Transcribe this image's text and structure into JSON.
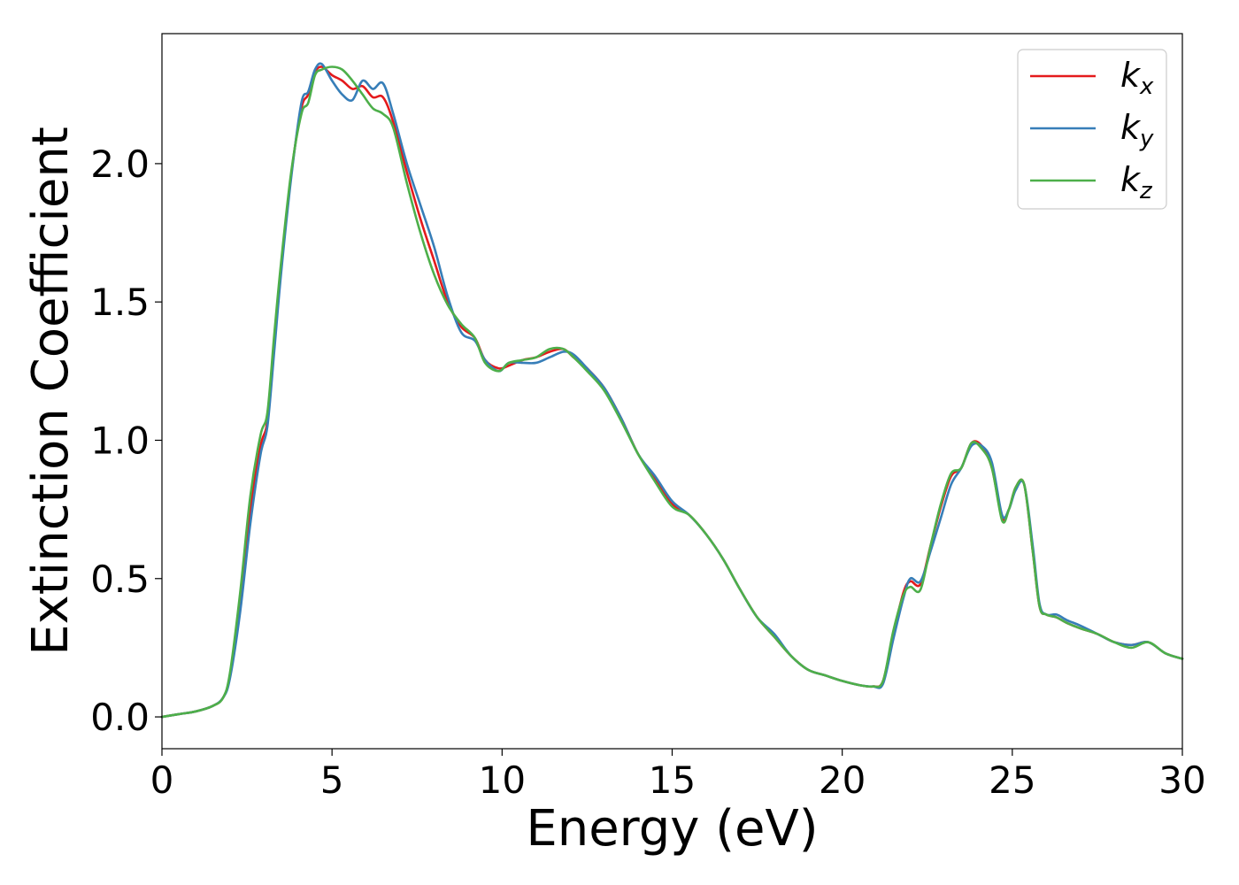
{
  "chart_data": {
    "type": "line",
    "title": "",
    "xlabel": "Energy (eV)",
    "ylabel": "Extinction Coefficient",
    "xlim": [
      0,
      30
    ],
    "ylim": [
      -0.115,
      2.47
    ],
    "xticks": [
      0,
      5,
      10,
      15,
      20,
      25,
      30
    ],
    "xtick_labels": [
      "0",
      "5",
      "10",
      "15",
      "20",
      "25",
      "30"
    ],
    "yticks": [
      0.0,
      0.5,
      1.0,
      1.5,
      2.0
    ],
    "ytick_labels": [
      "0.0",
      "0.5",
      "1.0",
      "1.5",
      "2.0"
    ],
    "grid": false,
    "legend_position": "top-right",
    "series": [
      {
        "name": "k",
        "subscript": "x",
        "color": "#e41a1c",
        "x": [
          0,
          0.5,
          1,
          1.5,
          1.8,
          2,
          2.3,
          2.6,
          2.9,
          3.1,
          3.3,
          3.5,
          3.8,
          4.1,
          4.3,
          4.5,
          4.7,
          5,
          5.3,
          5.6,
          5.9,
          6.2,
          6.5,
          6.8,
          7.2,
          7.6,
          8,
          8.4,
          8.8,
          9.2,
          9.5,
          9.9,
          10.2,
          10.6,
          11,
          11.4,
          11.8,
          12.1,
          12.5,
          13,
          13.5,
          14,
          14.5,
          15,
          15.5,
          16,
          16.5,
          17,
          17.5,
          18,
          18.5,
          19,
          19.5,
          20,
          20.5,
          20.9,
          21.2,
          21.5,
          21.8,
          22,
          22.3,
          22.6,
          22.9,
          23.2,
          23.5,
          23.8,
          24.1,
          24.4,
          24.7,
          24.9,
          25.1,
          25.35,
          25.6,
          25.8,
          26,
          26.3,
          26.6,
          27,
          27.5,
          28,
          28.5,
          29,
          29.5,
          30
        ],
        "y": [
          0,
          0.01,
          0.02,
          0.04,
          0.07,
          0.15,
          0.42,
          0.75,
          0.98,
          1.07,
          1.35,
          1.62,
          1.96,
          2.2,
          2.25,
          2.33,
          2.35,
          2.32,
          2.3,
          2.27,
          2.28,
          2.24,
          2.24,
          2.15,
          1.97,
          1.8,
          1.65,
          1.5,
          1.41,
          1.37,
          1.29,
          1.26,
          1.27,
          1.29,
          1.3,
          1.32,
          1.33,
          1.3,
          1.26,
          1.19,
          1.08,
          0.95,
          0.86,
          0.77,
          0.73,
          0.66,
          0.57,
          0.46,
          0.36,
          0.29,
          0.22,
          0.17,
          0.15,
          0.13,
          0.115,
          0.11,
          0.13,
          0.3,
          0.45,
          0.49,
          0.48,
          0.62,
          0.76,
          0.87,
          0.9,
          0.99,
          0.98,
          0.9,
          0.72,
          0.75,
          0.83,
          0.84,
          0.6,
          0.4,
          0.37,
          0.36,
          0.34,
          0.32,
          0.3,
          0.27,
          0.26,
          0.27,
          0.23,
          0.21
        ]
      },
      {
        "name": "k",
        "subscript": "y",
        "color": "#377eb8",
        "x": [
          0,
          0.5,
          1,
          1.5,
          1.8,
          2,
          2.3,
          2.6,
          2.9,
          3.1,
          3.3,
          3.5,
          3.8,
          4.1,
          4.3,
          4.5,
          4.7,
          5,
          5.3,
          5.6,
          5.9,
          6.2,
          6.5,
          6.8,
          7.2,
          7.6,
          8,
          8.4,
          8.8,
          9.2,
          9.5,
          9.9,
          10.2,
          10.6,
          11,
          11.4,
          11.8,
          12.1,
          12.5,
          13,
          13.5,
          14,
          14.5,
          15,
          15.5,
          16,
          16.5,
          17,
          17.5,
          18,
          18.5,
          19,
          19.5,
          20,
          20.5,
          20.9,
          21.2,
          21.5,
          21.8,
          22,
          22.3,
          22.6,
          22.9,
          23.2,
          23.5,
          23.8,
          24.1,
          24.4,
          24.7,
          24.9,
          25.1,
          25.35,
          25.6,
          25.8,
          26,
          26.3,
          26.6,
          27,
          27.5,
          28,
          28.5,
          29,
          29.5,
          30
        ],
        "y": [
          0,
          0.01,
          0.02,
          0.04,
          0.07,
          0.14,
          0.38,
          0.7,
          0.95,
          1.05,
          1.32,
          1.6,
          1.95,
          2.22,
          2.26,
          2.34,
          2.36,
          2.3,
          2.25,
          2.23,
          2.3,
          2.27,
          2.29,
          2.18,
          2.0,
          1.85,
          1.7,
          1.52,
          1.39,
          1.36,
          1.29,
          1.25,
          1.28,
          1.28,
          1.28,
          1.3,
          1.32,
          1.31,
          1.26,
          1.19,
          1.08,
          0.95,
          0.87,
          0.78,
          0.73,
          0.66,
          0.57,
          0.46,
          0.36,
          0.3,
          0.22,
          0.17,
          0.15,
          0.13,
          0.115,
          0.11,
          0.12,
          0.28,
          0.43,
          0.5,
          0.49,
          0.6,
          0.72,
          0.84,
          0.9,
          0.98,
          0.98,
          0.92,
          0.73,
          0.75,
          0.82,
          0.84,
          0.62,
          0.41,
          0.37,
          0.37,
          0.35,
          0.33,
          0.3,
          0.27,
          0.26,
          0.27,
          0.23,
          0.21
        ]
      },
      {
        "name": "k",
        "subscript": "z",
        "color": "#4daf4a",
        "x": [
          0,
          0.5,
          1,
          1.5,
          1.8,
          2,
          2.3,
          2.6,
          2.9,
          3.1,
          3.3,
          3.5,
          3.8,
          4.1,
          4.3,
          4.5,
          4.7,
          5,
          5.3,
          5.6,
          5.9,
          6.2,
          6.5,
          6.8,
          7.2,
          7.6,
          8,
          8.4,
          8.8,
          9.2,
          9.5,
          9.9,
          10.2,
          10.6,
          11,
          11.4,
          11.8,
          12.1,
          12.5,
          13,
          13.5,
          14,
          14.5,
          15,
          15.5,
          16,
          16.5,
          17,
          17.5,
          18,
          18.5,
          19,
          19.5,
          20,
          20.5,
          20.9,
          21.2,
          21.5,
          21.8,
          22,
          22.3,
          22.6,
          22.9,
          23.2,
          23.5,
          23.8,
          24.1,
          24.4,
          24.7,
          24.9,
          25.1,
          25.35,
          25.6,
          25.8,
          26,
          26.3,
          26.6,
          27,
          27.5,
          28,
          28.5,
          29,
          29.5,
          30
        ],
        "y": [
          0,
          0.01,
          0.02,
          0.04,
          0.07,
          0.16,
          0.45,
          0.8,
          1.02,
          1.1,
          1.38,
          1.64,
          1.97,
          2.18,
          2.22,
          2.32,
          2.34,
          2.35,
          2.34,
          2.3,
          2.25,
          2.2,
          2.18,
          2.13,
          1.93,
          1.75,
          1.6,
          1.49,
          1.42,
          1.37,
          1.28,
          1.25,
          1.28,
          1.29,
          1.3,
          1.33,
          1.33,
          1.3,
          1.25,
          1.18,
          1.07,
          0.95,
          0.85,
          0.76,
          0.73,
          0.66,
          0.57,
          0.46,
          0.36,
          0.29,
          0.22,
          0.17,
          0.15,
          0.13,
          0.115,
          0.11,
          0.13,
          0.31,
          0.44,
          0.47,
          0.46,
          0.62,
          0.77,
          0.88,
          0.9,
          0.99,
          0.97,
          0.9,
          0.71,
          0.75,
          0.83,
          0.84,
          0.6,
          0.4,
          0.37,
          0.36,
          0.34,
          0.32,
          0.3,
          0.27,
          0.25,
          0.27,
          0.23,
          0.21
        ]
      }
    ]
  }
}
